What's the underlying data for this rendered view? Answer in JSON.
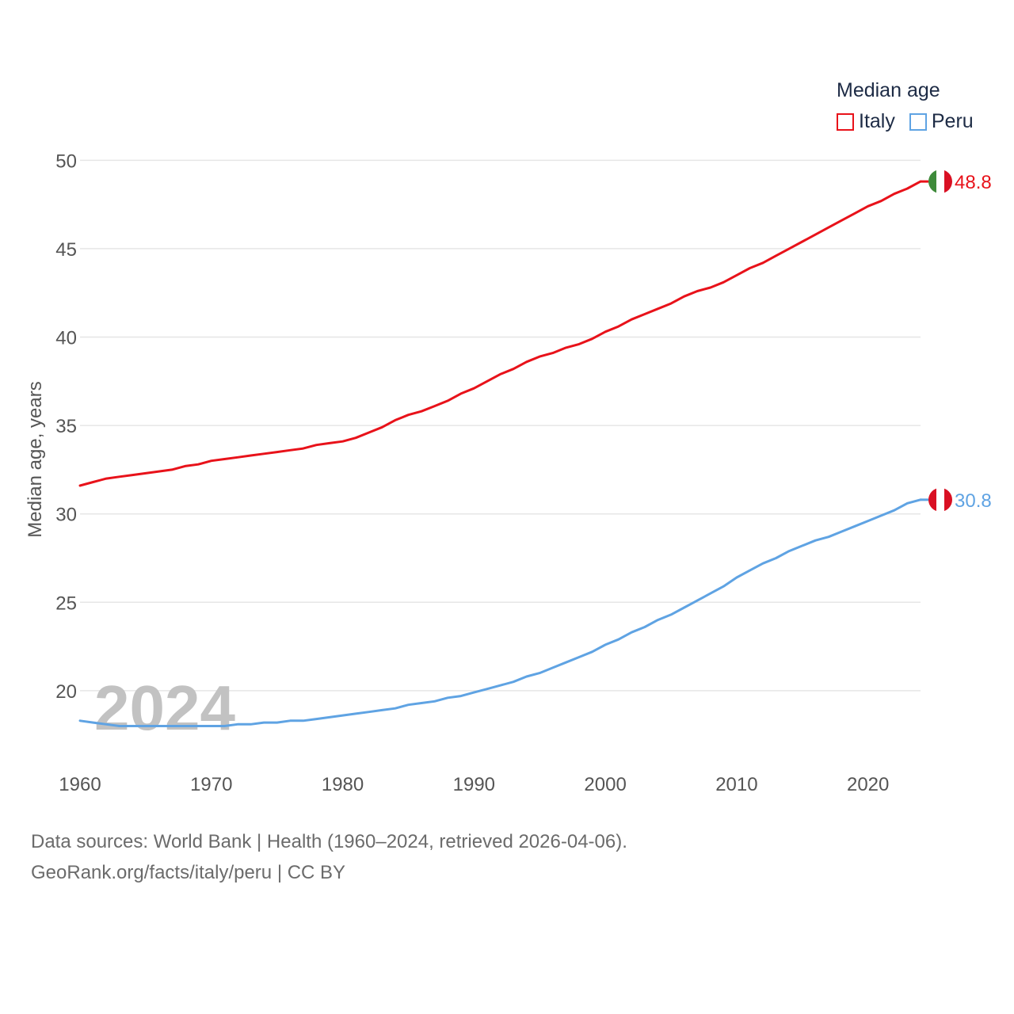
{
  "chart_data": {
    "type": "line",
    "legend_title": "Median age",
    "ylabel": "Median age, years",
    "xlabel": "",
    "xlim": [
      1960,
      2024
    ],
    "ylim": [
      16.5,
      51
    ],
    "x_ticks": [
      1960,
      1970,
      1980,
      1990,
      2000,
      2010,
      2020
    ],
    "y_ticks": [
      20,
      25,
      30,
      35,
      40,
      45,
      50
    ],
    "year_watermark": "2024",
    "x": [
      1960,
      1961,
      1962,
      1963,
      1964,
      1965,
      1966,
      1967,
      1968,
      1969,
      1970,
      1971,
      1972,
      1973,
      1974,
      1975,
      1976,
      1977,
      1978,
      1979,
      1980,
      1981,
      1982,
      1983,
      1984,
      1985,
      1986,
      1987,
      1988,
      1989,
      1990,
      1991,
      1992,
      1993,
      1994,
      1995,
      1996,
      1997,
      1998,
      1999,
      2000,
      2001,
      2002,
      2003,
      2004,
      2005,
      2006,
      2007,
      2008,
      2009,
      2010,
      2011,
      2012,
      2013,
      2014,
      2015,
      2016,
      2017,
      2018,
      2019,
      2020,
      2021,
      2022,
      2023,
      2024
    ],
    "series": [
      {
        "name": "Italy",
        "color": "#e8121a",
        "icon": "italy-flag",
        "end_label": "48.8",
        "values": [
          31.6,
          31.8,
          32.0,
          32.1,
          32.2,
          32.3,
          32.4,
          32.5,
          32.7,
          32.8,
          33.0,
          33.1,
          33.2,
          33.3,
          33.4,
          33.5,
          33.6,
          33.7,
          33.9,
          34.0,
          34.1,
          34.3,
          34.6,
          34.9,
          35.3,
          35.6,
          35.8,
          36.1,
          36.4,
          36.8,
          37.1,
          37.5,
          37.9,
          38.2,
          38.6,
          38.9,
          39.1,
          39.4,
          39.6,
          39.9,
          40.3,
          40.6,
          41.0,
          41.3,
          41.6,
          41.9,
          42.3,
          42.6,
          42.8,
          43.1,
          43.5,
          43.9,
          44.2,
          44.6,
          45.0,
          45.4,
          45.8,
          46.2,
          46.6,
          47.0,
          47.4,
          47.7,
          48.1,
          48.4,
          48.8
        ]
      },
      {
        "name": "Peru",
        "color": "#5fa3e3",
        "icon": "peru-flag",
        "end_label": "30.8",
        "values": [
          18.3,
          18.2,
          18.1,
          18.0,
          18.0,
          18.0,
          18.0,
          18.0,
          18.0,
          18.0,
          18.0,
          18.0,
          18.1,
          18.1,
          18.2,
          18.2,
          18.3,
          18.3,
          18.4,
          18.5,
          18.6,
          18.7,
          18.8,
          18.9,
          19.0,
          19.2,
          19.3,
          19.4,
          19.6,
          19.7,
          19.9,
          20.1,
          20.3,
          20.5,
          20.8,
          21.0,
          21.3,
          21.6,
          21.9,
          22.2,
          22.6,
          22.9,
          23.3,
          23.6,
          24.0,
          24.3,
          24.7,
          25.1,
          25.5,
          25.9,
          26.4,
          26.8,
          27.2,
          27.5,
          27.9,
          28.2,
          28.5,
          28.7,
          29.0,
          29.3,
          29.6,
          29.9,
          30.2,
          30.6,
          30.8
        ]
      }
    ]
  },
  "source": {
    "line1": "Data sources: World Bank | Health (1960–2024, retrieved 2026-04-06).",
    "line2": "GeoRank.org/facts/italy/peru | CC BY"
  }
}
